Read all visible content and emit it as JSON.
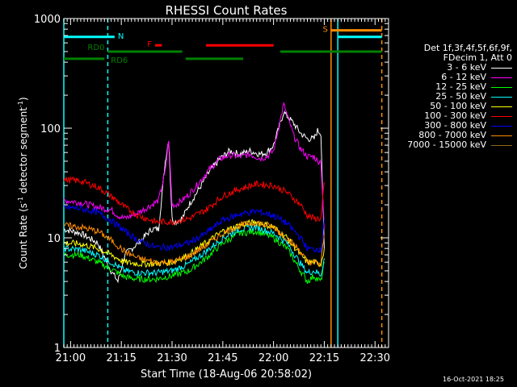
{
  "chart_data": {
    "type": "line",
    "title": "RHESSI Count Rates",
    "xlabel": "Start Time (18-Aug-06 20:58:02)",
    "ylabel_main": "Count Rate (s",
    "ylabel_sup1": "-1",
    "ylabel_mid": " detector segment",
    "ylabel_sup2": "-1",
    "ylabel_end": ")",
    "x_range_min": [
      -2,
      94
    ],
    "y_scale": "log",
    "y_range": [
      1,
      1000
    ],
    "x_ticks": [
      {
        "min": 0,
        "label": "21:00"
      },
      {
        "min": 15,
        "label": "21:15"
      },
      {
        "min": 30,
        "label": "21:30"
      },
      {
        "min": 45,
        "label": "21:45"
      },
      {
        "min": 60,
        "label": "22:00"
      },
      {
        "min": 75,
        "label": "22:15"
      },
      {
        "min": 90,
        "label": "22:30"
      }
    ],
    "y_ticks": [
      {
        "v": 1,
        "label": "1"
      },
      {
        "v": 10,
        "label": "10"
      },
      {
        "v": 100,
        "label": "100"
      },
      {
        "v": 1000,
        "label": "1000"
      }
    ],
    "legend": {
      "header": [
        "Det 1f,3f,4f,5f,6f,9f,",
        "FDecim 1, Att 0"
      ],
      "placement": "right"
    },
    "series": [
      {
        "name": "3 - 6 keV",
        "color": "#ffffff",
        "x": [
          -2,
          3,
          8,
          12,
          14,
          16,
          20,
          24,
          26,
          28,
          29,
          30,
          31,
          33,
          35,
          38,
          41,
          44,
          47,
          50,
          53,
          56,
          58,
          60,
          63,
          66,
          68,
          70,
          72,
          73,
          74,
          75
        ],
        "y": [
          12,
          11,
          9,
          5,
          4,
          7,
          9,
          12,
          12,
          50,
          80,
          15,
          14,
          15,
          20,
          28,
          40,
          52,
          62,
          58,
          62,
          58,
          60,
          70,
          140,
          110,
          90,
          80,
          80,
          95,
          90,
          8
        ]
      },
      {
        "name": "6 - 12 keV",
        "color": "#ff00ff",
        "x": [
          -2,
          3,
          8,
          12,
          14,
          16,
          20,
          24,
          26,
          28,
          29,
          30,
          31,
          33,
          35,
          38,
          41,
          44,
          47,
          50,
          53,
          56,
          58,
          60,
          63,
          66,
          68,
          70,
          72,
          73,
          74,
          75
        ],
        "y": [
          22,
          21,
          19,
          18,
          16,
          15,
          17,
          20,
          22,
          40,
          80,
          20,
          20,
          22,
          25,
          32,
          42,
          52,
          57,
          55,
          58,
          53,
          55,
          62,
          165,
          85,
          65,
          55,
          55,
          50,
          50,
          12
        ]
      },
      {
        "name": "12 - 25 keV",
        "color": "#00ff00",
        "x": [
          -2,
          3,
          8,
          12,
          16,
          20,
          25,
          30,
          35,
          40,
          45,
          50,
          55,
          60,
          64,
          68,
          70,
          72,
          73,
          74,
          75
        ],
        "y": [
          7,
          7,
          6,
          5.2,
          4.4,
          4.2,
          4.2,
          4.5,
          5,
          6.5,
          9,
          11,
          11.5,
          10,
          8,
          5,
          4,
          4.5,
          4.2,
          4,
          6
        ]
      },
      {
        "name": "25 - 50 keV",
        "color": "#00ffff",
        "x": [
          -2,
          3,
          8,
          12,
          16,
          20,
          25,
          30,
          35,
          40,
          45,
          50,
          55,
          60,
          64,
          68,
          70,
          72,
          73,
          74,
          75
        ],
        "y": [
          8,
          7.8,
          7,
          6,
          5,
          4.8,
          4.8,
          5,
          5.8,
          7.5,
          10,
          12,
          12.5,
          11,
          9,
          5.8,
          4.8,
          5,
          4.8,
          4.6,
          6.5
        ]
      },
      {
        "name": "50 - 100 keV",
        "color": "#ffff00",
        "x": [
          -2,
          3,
          8,
          12,
          16,
          20,
          25,
          30,
          35,
          40,
          45,
          50,
          55,
          60,
          64,
          68,
          70,
          72,
          73,
          74,
          75
        ],
        "y": [
          9,
          8.8,
          8,
          7,
          6,
          5.8,
          5.8,
          6,
          7,
          9,
          11.5,
          13,
          14,
          12.5,
          10,
          7,
          6,
          6,
          5.8,
          5.8,
          8
        ]
      },
      {
        "name": "100 - 300 keV",
        "color": "#ff0000",
        "x": [
          -2,
          3,
          8,
          12,
          16,
          20,
          25,
          30,
          35,
          40,
          45,
          50,
          55,
          60,
          64,
          68,
          70,
          72,
          73,
          74,
          75
        ],
        "y": [
          34,
          33,
          29,
          24,
          19,
          16,
          14,
          14,
          15,
          18,
          24,
          28,
          31,
          30,
          26,
          20,
          16,
          15,
          15,
          15,
          32
        ]
      },
      {
        "name": "300 - 800 keV",
        "color": "#0000ff",
        "x": [
          -2,
          3,
          8,
          12,
          16,
          20,
          25,
          30,
          35,
          40,
          45,
          50,
          55,
          60,
          64,
          68,
          70,
          72,
          73,
          74,
          75
        ],
        "y": [
          19,
          18.5,
          17,
          14.5,
          11.5,
          9.5,
          8.2,
          8.2,
          9,
          11,
          14.5,
          16.5,
          17.5,
          16,
          13.5,
          10,
          8,
          7.8,
          8,
          7.6,
          15
        ]
      },
      {
        "name": "800 - 7000 keV",
        "color": "#ff8c00",
        "x": [
          -2,
          3,
          8,
          12,
          16,
          20,
          25,
          30,
          35,
          40,
          45,
          50,
          55,
          60,
          64,
          68,
          70,
          72,
          73,
          74,
          75
        ],
        "y": [
          13,
          12.5,
          11.5,
          9.5,
          7.5,
          6.5,
          6,
          6,
          6.8,
          8.5,
          11,
          13,
          13.8,
          12.5,
          10,
          7.5,
          6,
          6,
          5.8,
          5.8,
          11
        ]
      },
      {
        "name": "7000 - 15000 keV",
        "color": "#8b6914",
        "x": [],
        "y": []
      }
    ],
    "flag_bars": [
      {
        "label": "N",
        "color": "#00ffff",
        "segments": [
          [
            -2,
            13
          ],
          [
            79,
            92
          ]
        ],
        "level": 680
      },
      {
        "label": "F",
        "color": "#ff0000",
        "segments": [
          [
            25,
            27
          ],
          [
            40,
            60
          ]
        ],
        "level": 570
      },
      {
        "label": "S",
        "color": "#ff8c00",
        "segments": [
          [
            77,
            92
          ]
        ],
        "level": 780
      },
      {
        "label": "RD0",
        "color": "#008000",
        "segments": [
          [
            11,
            33
          ],
          [
            62,
            92
          ]
        ],
        "level": 500
      },
      {
        "label": "RD6",
        "color": "#008000",
        "segments": [
          [
            -2,
            10
          ],
          [
            34,
            51
          ]
        ],
        "level": 430
      }
    ],
    "vertical_markers": [
      {
        "min": -2,
        "color": "#00ffff",
        "style": "solid"
      },
      {
        "min": 11,
        "color": "#00ffff",
        "style": "dashed"
      },
      {
        "min": 77,
        "color": "#ff8c00",
        "style": "solid"
      },
      {
        "min": 79,
        "color": "#00ffff",
        "style": "solid"
      },
      {
        "min": 92,
        "color": "#ff8c00",
        "style": "dashed"
      }
    ]
  },
  "timestamp": "16-Oct-2021 18:25"
}
